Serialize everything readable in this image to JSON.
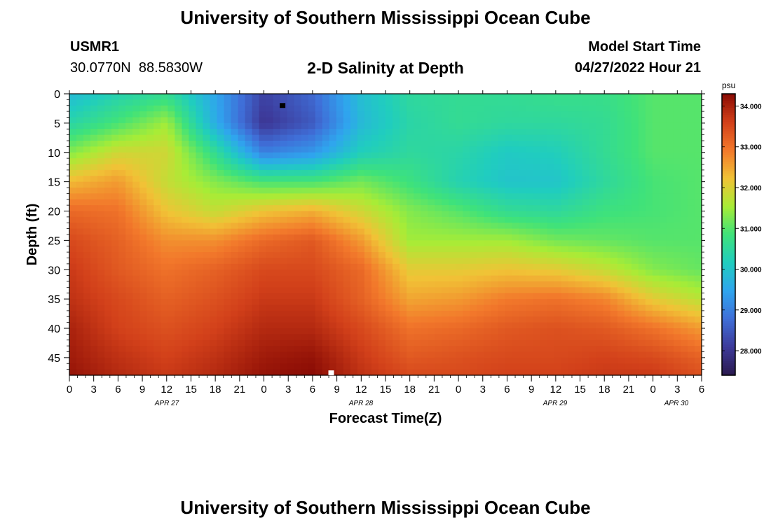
{
  "page_title": "University of Southern Mississippi Ocean Cube",
  "bottom_title": "University of Southern Mississippi Ocean Cube",
  "station": {
    "id": "USMR1",
    "lat": "30.0770N",
    "lon": "88.5830W"
  },
  "subtitle": "2-D Salinity at Depth",
  "model_start": {
    "label": "Model Start Time",
    "value": "04/27/2022 Hour 21"
  },
  "chart_data": {
    "type": "heatmap",
    "title": "2-D Salinity at Depth",
    "xlabel": "Forecast Time(Z)",
    "ylabel": "Depth (ft)",
    "x_tick_labels": [
      "0",
      "3",
      "6",
      "9",
      "12",
      "15",
      "18",
      "21",
      "0",
      "3",
      "6",
      "9",
      "12",
      "15",
      "18",
      "21",
      "0",
      "3",
      "6",
      "9",
      "12",
      "15",
      "18",
      "21",
      "0",
      "3",
      "6"
    ],
    "x_day_labels": [
      "APR 27",
      "APR 28",
      "APR 29",
      "APR 30"
    ],
    "y_ticks": [
      0,
      5,
      10,
      15,
      20,
      25,
      30,
      35,
      40,
      45
    ],
    "ylim": [
      0,
      48
    ],
    "y_inverted": true,
    "colorbar": {
      "unit": "psu",
      "range": [
        27.4,
        34.3
      ],
      "ticks": [
        "28.000",
        "29.000",
        "30.000",
        "31.000",
        "32.000",
        "33.000",
        "34.000"
      ]
    },
    "colormap": [
      "#2b1a4f",
      "#3d3a9a",
      "#3f6fd8",
      "#2fa5ee",
      "#20cdbf",
      "#3fe27a",
      "#a8ec36",
      "#f1c236",
      "#f2782b",
      "#d2401a",
      "#8a0b04"
    ],
    "time_hours": [
      0,
      6,
      12,
      18,
      24,
      30,
      36,
      42,
      48,
      54,
      60,
      66,
      72,
      78
    ],
    "depth_ft": [
      0,
      5,
      10,
      15,
      20,
      25,
      30,
      35,
      40,
      45,
      48
    ],
    "salinity_psu": [
      [
        29.8,
        30.3,
        30.6,
        29.5,
        28.2,
        28.7,
        29.9,
        30.5,
        30.6,
        30.6,
        30.7,
        30.7,
        31.0,
        31.0
      ],
      [
        30.4,
        30.9,
        31.5,
        29.6,
        28.0,
        28.5,
        29.8,
        30.4,
        30.6,
        30.5,
        30.5,
        30.6,
        31.0,
        31.0
      ],
      [
        31.3,
        31.9,
        31.9,
        30.6,
        29.0,
        29.3,
        30.2,
        30.5,
        30.4,
        30.1,
        30.2,
        30.6,
        31.0,
        31.0
      ],
      [
        32.3,
        32.6,
        31.8,
        31.3,
        30.9,
        30.9,
        31.2,
        30.8,
        30.3,
        30.0,
        30.0,
        30.5,
        30.9,
        31.0
      ],
      [
        33.1,
        33.0,
        32.2,
        31.8,
        32.2,
        32.4,
        31.9,
        31.3,
        31.0,
        30.6,
        30.5,
        30.8,
        30.9,
        31.0
      ],
      [
        33.5,
        33.2,
        32.7,
        32.7,
        33.1,
        33.3,
        32.6,
        31.5,
        31.5,
        31.5,
        31.2,
        31.1,
        31.0,
        31.0
      ],
      [
        33.7,
        33.3,
        33.0,
        33.2,
        33.5,
        33.5,
        33.1,
        32.1,
        32.1,
        32.2,
        32.1,
        31.8,
        31.3,
        31.1
      ],
      [
        33.8,
        33.5,
        33.2,
        33.4,
        33.7,
        33.7,
        33.2,
        32.5,
        32.6,
        32.9,
        33.0,
        32.8,
        32.1,
        31.7
      ],
      [
        34.0,
        33.6,
        33.4,
        33.6,
        33.9,
        33.9,
        33.5,
        33.0,
        33.1,
        33.3,
        33.4,
        33.3,
        33.0,
        32.6
      ],
      [
        34.1,
        33.8,
        33.6,
        33.8,
        34.1,
        34.2,
        33.7,
        33.3,
        33.4,
        33.5,
        33.5,
        33.6,
        33.5,
        33.2
      ],
      [
        34.2,
        33.9,
        33.7,
        33.9,
        34.2,
        34.3,
        33.8,
        33.5,
        33.5,
        33.6,
        33.6,
        33.7,
        33.7,
        33.4
      ]
    ],
    "markers": [
      {
        "color": "#000000",
        "hour": 26.3,
        "depth": 2
      },
      {
        "color": "#ffffff",
        "hour": 32.3,
        "depth": 47.6
      }
    ]
  }
}
